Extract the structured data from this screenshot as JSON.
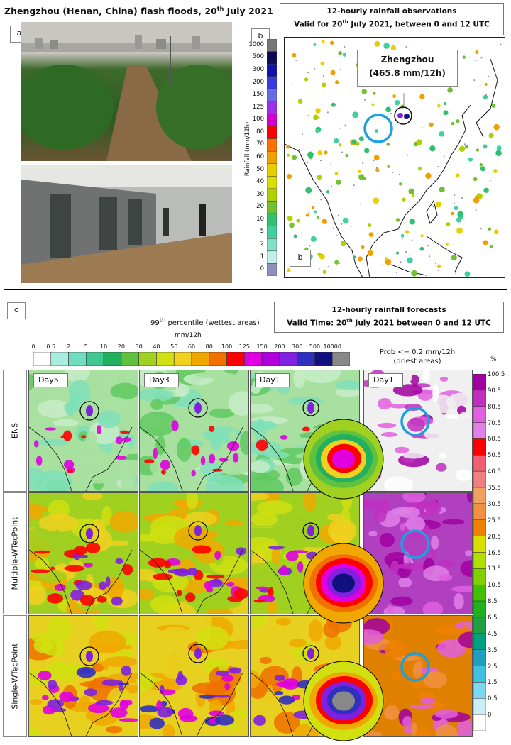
{
  "title": "Zhengzhou (Henan, China) flash floods, 20th July 2021",
  "panel_a": {
    "tag": "a"
  },
  "panel_b": {
    "tag": "b",
    "header_line1": "12-hourly rainfall observations",
    "header_line2": "Valid for 20th July 2021, between 0 and 12 UTC",
    "callout_city": "Zhengzhou",
    "callout_value": "(465.8 mm/12h)",
    "colorbar_title": "Rainfall (mm/12h)",
    "colorbar_labels": [
      "1000",
      "500",
      "300",
      "200",
      "150",
      "125",
      "100",
      "80",
      "70",
      "60",
      "50",
      "40",
      "30",
      "20",
      "10",
      "5",
      "2",
      "1",
      "0"
    ],
    "colorbar_colors": [
      "#777777",
      "#0a0a55",
      "#1010aa",
      "#3a3ae0",
      "#6a6ae8",
      "#9b30e8",
      "#d000d0",
      "#ff0000",
      "#ff7000",
      "#f0a000",
      "#e8d000",
      "#d8e000",
      "#b0d000",
      "#70c030",
      "#30c070",
      "#40d0a0",
      "#80e0c8",
      "#c0f0e8",
      "#9090c0"
    ]
  },
  "panel_c": {
    "tag": "c",
    "header_line1": "12-hourly rainfall forecasts",
    "header_line2": "Valid Time: 20th July 2021 between 0 and 12 UTC",
    "left_title": "99th percentile (wettest areas)",
    "left_units": "mm/12h",
    "right_title_1": "Prob <= 0.2 mm/12h",
    "right_title_2": "(driest areas)",
    "right_units": "%",
    "hcb_labels": [
      "0",
      "0.5",
      "2",
      "5",
      "10",
      "20",
      "30",
      "40",
      "50",
      "60",
      "80",
      "100",
      "125",
      "150",
      "200",
      "300",
      "500",
      "10000"
    ],
    "hcb_colors": [
      "#ffffff",
      "#a8eee0",
      "#70dcc0",
      "#40c890",
      "#20b060",
      "#60c040",
      "#a0d020",
      "#d0e010",
      "#f0d020",
      "#f0a800",
      "#f07000",
      "#ff0000",
      "#e000e0",
      "#b000e0",
      "#8020e0",
      "#3030c0",
      "#101080",
      "#888888"
    ],
    "rcb_labels": [
      "100.5",
      "90.5",
      "80.5",
      "70.5",
      "60.5",
      "50.5",
      "40.5",
      "35.5",
      "30.5",
      "25.5",
      "20.5",
      "16.5",
      "13.5",
      "10.5",
      "8.5",
      "6.5",
      "4.5",
      "3.5",
      "2.5",
      "1.5",
      "0.5",
      "0"
    ],
    "rcb_colors": [
      "#a000a0",
      "#c030c0",
      "#e060e0",
      "#e080e8",
      "#ff0000",
      "#f06070",
      "#f08080",
      "#f0a060",
      "#f09040",
      "#f08000",
      "#d8e000",
      "#b0e000",
      "#80d000",
      "#40c000",
      "#20b020",
      "#20a040",
      "#00a080",
      "#20a0c0",
      "#40c0e0",
      "#80d8f0",
      "#c8f0f8",
      "#ffffff"
    ],
    "rows": [
      "ENS",
      "Multiple-WTecPoint",
      "Single-WTecPoint"
    ],
    "cols": [
      "Day5",
      "Day3",
      "Day1",
      "Day1"
    ]
  }
}
